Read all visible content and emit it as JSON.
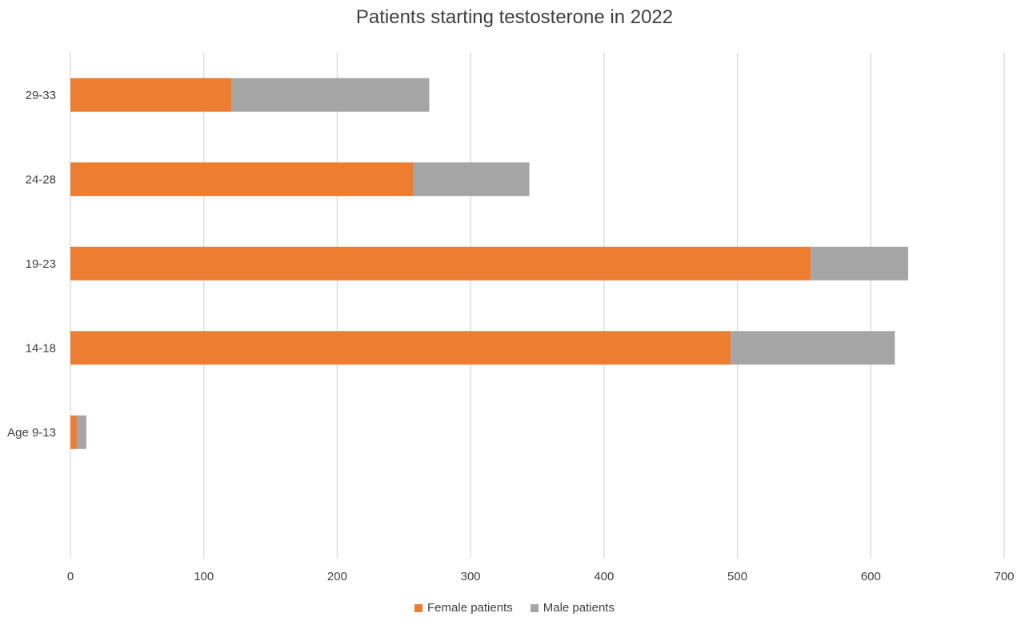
{
  "chart_data": {
    "type": "bar",
    "orientation": "horizontal",
    "stacked": true,
    "title": "Patients starting testosterone in 2022",
    "categories": [
      "Age 9-13",
      "14-18",
      "19-23",
      "24-28",
      "29-33"
    ],
    "series": [
      {
        "name": "Female patients",
        "color": "#ED7D31",
        "values": [
          5,
          495,
          555,
          257,
          121
        ]
      },
      {
        "name": "Male patients",
        "color": "#A5A5A5",
        "values": [
          7,
          123,
          73,
          87,
          148
        ]
      }
    ],
    "xlim": [
      0,
      700
    ],
    "xticks": [
      "0",
      "100",
      "200",
      "300",
      "400",
      "500",
      "600",
      "700"
    ],
    "grid": true,
    "legend_position": "bottom"
  }
}
